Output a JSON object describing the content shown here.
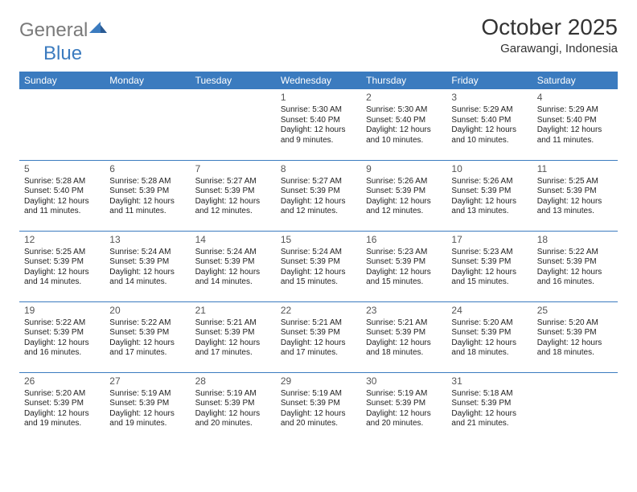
{
  "logo": {
    "text_gray": "General",
    "text_blue": "Blue"
  },
  "title": "October 2025",
  "location": "Garawangi, Indonesia",
  "colors": {
    "header_bg": "#3b7bbf",
    "header_text": "#ffffff",
    "border": "#3b7bbf",
    "logo_gray": "#7a7a7a",
    "logo_blue": "#3b7bbf",
    "text": "#222222",
    "daynum": "#555555",
    "background": "#ffffff"
  },
  "calendar": {
    "day_names": [
      "Sunday",
      "Monday",
      "Tuesday",
      "Wednesday",
      "Thursday",
      "Friday",
      "Saturday"
    ],
    "weeks": [
      [
        null,
        null,
        null,
        {
          "n": "1",
          "sr": "5:30 AM",
          "ss": "5:40 PM",
          "dl": "12 hours and 9 minutes."
        },
        {
          "n": "2",
          "sr": "5:30 AM",
          "ss": "5:40 PM",
          "dl": "12 hours and 10 minutes."
        },
        {
          "n": "3",
          "sr": "5:29 AM",
          "ss": "5:40 PM",
          "dl": "12 hours and 10 minutes."
        },
        {
          "n": "4",
          "sr": "5:29 AM",
          "ss": "5:40 PM",
          "dl": "12 hours and 11 minutes."
        }
      ],
      [
        {
          "n": "5",
          "sr": "5:28 AM",
          "ss": "5:40 PM",
          "dl": "12 hours and 11 minutes."
        },
        {
          "n": "6",
          "sr": "5:28 AM",
          "ss": "5:39 PM",
          "dl": "12 hours and 11 minutes."
        },
        {
          "n": "7",
          "sr": "5:27 AM",
          "ss": "5:39 PM",
          "dl": "12 hours and 12 minutes."
        },
        {
          "n": "8",
          "sr": "5:27 AM",
          "ss": "5:39 PM",
          "dl": "12 hours and 12 minutes."
        },
        {
          "n": "9",
          "sr": "5:26 AM",
          "ss": "5:39 PM",
          "dl": "12 hours and 12 minutes."
        },
        {
          "n": "10",
          "sr": "5:26 AM",
          "ss": "5:39 PM",
          "dl": "12 hours and 13 minutes."
        },
        {
          "n": "11",
          "sr": "5:25 AM",
          "ss": "5:39 PM",
          "dl": "12 hours and 13 minutes."
        }
      ],
      [
        {
          "n": "12",
          "sr": "5:25 AM",
          "ss": "5:39 PM",
          "dl": "12 hours and 14 minutes."
        },
        {
          "n": "13",
          "sr": "5:24 AM",
          "ss": "5:39 PM",
          "dl": "12 hours and 14 minutes."
        },
        {
          "n": "14",
          "sr": "5:24 AM",
          "ss": "5:39 PM",
          "dl": "12 hours and 14 minutes."
        },
        {
          "n": "15",
          "sr": "5:24 AM",
          "ss": "5:39 PM",
          "dl": "12 hours and 15 minutes."
        },
        {
          "n": "16",
          "sr": "5:23 AM",
          "ss": "5:39 PM",
          "dl": "12 hours and 15 minutes."
        },
        {
          "n": "17",
          "sr": "5:23 AM",
          "ss": "5:39 PM",
          "dl": "12 hours and 15 minutes."
        },
        {
          "n": "18",
          "sr": "5:22 AM",
          "ss": "5:39 PM",
          "dl": "12 hours and 16 minutes."
        }
      ],
      [
        {
          "n": "19",
          "sr": "5:22 AM",
          "ss": "5:39 PM",
          "dl": "12 hours and 16 minutes."
        },
        {
          "n": "20",
          "sr": "5:22 AM",
          "ss": "5:39 PM",
          "dl": "12 hours and 17 minutes."
        },
        {
          "n": "21",
          "sr": "5:21 AM",
          "ss": "5:39 PM",
          "dl": "12 hours and 17 minutes."
        },
        {
          "n": "22",
          "sr": "5:21 AM",
          "ss": "5:39 PM",
          "dl": "12 hours and 17 minutes."
        },
        {
          "n": "23",
          "sr": "5:21 AM",
          "ss": "5:39 PM",
          "dl": "12 hours and 18 minutes."
        },
        {
          "n": "24",
          "sr": "5:20 AM",
          "ss": "5:39 PM",
          "dl": "12 hours and 18 minutes."
        },
        {
          "n": "25",
          "sr": "5:20 AM",
          "ss": "5:39 PM",
          "dl": "12 hours and 18 minutes."
        }
      ],
      [
        {
          "n": "26",
          "sr": "5:20 AM",
          "ss": "5:39 PM",
          "dl": "12 hours and 19 minutes."
        },
        {
          "n": "27",
          "sr": "5:19 AM",
          "ss": "5:39 PM",
          "dl": "12 hours and 19 minutes."
        },
        {
          "n": "28",
          "sr": "5:19 AM",
          "ss": "5:39 PM",
          "dl": "12 hours and 20 minutes."
        },
        {
          "n": "29",
          "sr": "5:19 AM",
          "ss": "5:39 PM",
          "dl": "12 hours and 20 minutes."
        },
        {
          "n": "30",
          "sr": "5:19 AM",
          "ss": "5:39 PM",
          "dl": "12 hours and 20 minutes."
        },
        {
          "n": "31",
          "sr": "5:18 AM",
          "ss": "5:39 PM",
          "dl": "12 hours and 21 minutes."
        },
        null
      ]
    ],
    "labels": {
      "sunrise": "Sunrise:",
      "sunset": "Sunset:",
      "daylight": "Daylight:"
    }
  }
}
